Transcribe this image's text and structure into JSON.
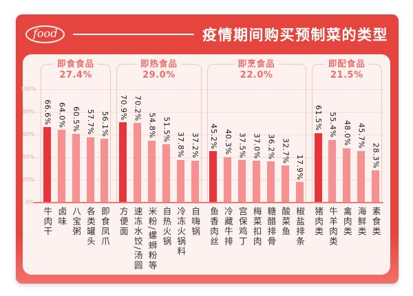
{
  "header": {
    "logo": "food",
    "title": "疫情期间购买预制菜的类型"
  },
  "chart_data": {
    "type": "bar",
    "title": "疫情期间购买预制菜的类型",
    "ylabel": "",
    "xlabel": "",
    "unit": "%",
    "ylim": [
      0,
      100
    ],
    "grid": true,
    "y_ticks": [
      "100%",
      "80%",
      "60%",
      "40%",
      "20%",
      "0%"
    ],
    "colors": {
      "bar_highlight": "#e8353b",
      "bar_normal": "#f79090",
      "group_label": "#ef6e69",
      "card_red": "#e5453c",
      "panel_pink": "#fdf2f0"
    },
    "groups": [
      {
        "name": "即食食品",
        "share": "27.4%",
        "bars": [
          {
            "label": "牛肉干",
            "value": 66.6,
            "display": "66.6%"
          },
          {
            "label": "卤味",
            "value": 64.0,
            "display": "64.0%"
          },
          {
            "label": "八宝粥",
            "value": 60.5,
            "display": "60.5%"
          },
          {
            "label": "各类罐头",
            "value": 57.7,
            "display": "57.7%"
          },
          {
            "label": "即食凤爪",
            "value": 56.1,
            "display": "56.1%"
          }
        ]
      },
      {
        "name": "即热食品",
        "share": "29.0%",
        "bars": [
          {
            "label": "方便面",
            "value": 70.9,
            "display": "70.9%"
          },
          {
            "label": "速冻水饺/汤圆",
            "value": 70.2,
            "display": "70.2%"
          },
          {
            "label": "米粉/螺蛳粉等",
            "value": 54.8,
            "display": "54.8%"
          },
          {
            "label": "自热火锅",
            "value": 51.5,
            "display": "51.5%"
          },
          {
            "label": "冷冻火锅料",
            "value": 37.8,
            "display": "37.8%"
          },
          {
            "label": "自嗨锅",
            "value": 37.2,
            "display": "37.2%"
          }
        ]
      },
      {
        "name": "即烹食品",
        "share": "22.0%",
        "bars": [
          {
            "label": "鱼香肉丝",
            "value": 45.2,
            "display": "45.2%"
          },
          {
            "label": "冷藏牛排",
            "value": 40.3,
            "display": "40.3%"
          },
          {
            "label": "宫保鸡丁",
            "value": 37.5,
            "display": "37.5%"
          },
          {
            "label": "梅菜扣肉",
            "value": 37.0,
            "display": "37.0%"
          },
          {
            "label": "糖醋排骨",
            "value": 36.2,
            "display": "36.2%"
          },
          {
            "label": "酸菜鱼",
            "value": 32.7,
            "display": "32.7%"
          },
          {
            "label": "椒盐排条",
            "value": 17.9,
            "display": "17.9%"
          }
        ]
      },
      {
        "name": "即配食品",
        "share": "21.5%",
        "bars": [
          {
            "label": "猪肉类",
            "value": 61.5,
            "display": "61.5%"
          },
          {
            "label": "牛羊肉类",
            "value": 55.4,
            "display": "55.4%"
          },
          {
            "label": "禽肉类",
            "value": 48.0,
            "display": "48.0%"
          },
          {
            "label": "海鲜类",
            "value": 45.7,
            "display": "45.7%"
          },
          {
            "label": "素食类",
            "value": 28.3,
            "display": "28.3%"
          }
        ]
      }
    ]
  }
}
